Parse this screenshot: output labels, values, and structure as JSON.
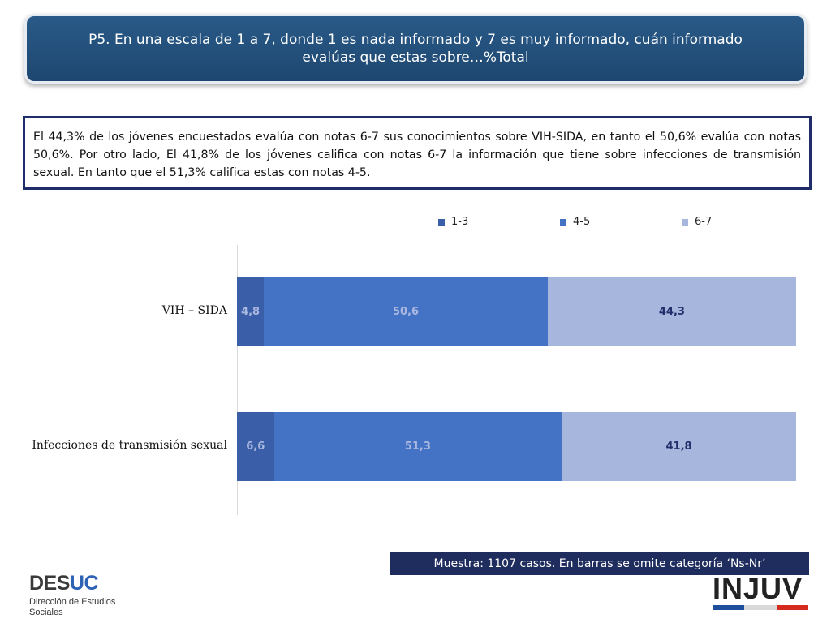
{
  "header": {
    "title": "P5. En una escala de 1 a 7, donde 1 es nada informado y 7 es muy informado, cuán informado evalúas que estas sobre…%Total"
  },
  "summary": {
    "text": "El 44,3% de los jóvenes encuestados evalúa con notas 6-7 sus conocimientos sobre VIH-SIDA, en tanto el 50,6% evalúa con notas 50,6%. Por otro lado, El 41,8% de los jóvenes califica con notas 6-7 la información que tiene sobre infecciones de transmisión sexual. En tanto que el 51,3% califica estas con notas 4-5."
  },
  "chart_data": {
    "type": "bar",
    "orientation": "horizontal",
    "stacked": true,
    "categories": [
      "VIH – SIDA",
      "Infecciones de transmisión sexual"
    ],
    "series": [
      {
        "name": "1-3",
        "values": [
          4.8,
          6.6
        ],
        "labels": [
          "4,8",
          "6,6"
        ],
        "color": "#3a5fa8"
      },
      {
        "name": "4-5",
        "values": [
          50.6,
          51.3
        ],
        "labels": [
          "50,6",
          "51,3"
        ],
        "color": "#4472c4"
      },
      {
        "name": "6-7",
        "values": [
          44.3,
          41.8
        ],
        "labels": [
          "44,3",
          "41,8"
        ],
        "color": "#a7b6dc"
      }
    ],
    "xlim": [
      0,
      100
    ],
    "legend_position": "top",
    "grid": false
  },
  "footer": {
    "note": "Muestra: 1107 casos. En barras se omite categoría ‘Ns-Nr’",
    "desuc_part1": "DES",
    "desuc_part2": "UC",
    "desuc_line1": "Dirección de Estudios",
    "desuc_line2": "Sociales",
    "injuv": "INJUV"
  },
  "colors": {
    "title_bg": "#1d4770",
    "summary_border": "#1f2d6b",
    "footnote_bg": "#1f2d5e",
    "label_light": "#aab8e0",
    "label_dark": "#1f2d6b"
  }
}
